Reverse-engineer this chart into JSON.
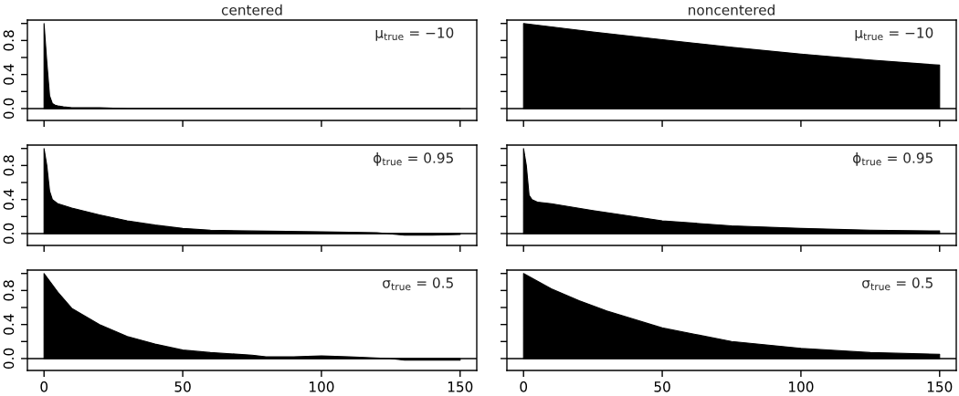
{
  "chart_data": [
    {
      "type": "area",
      "title": "centered",
      "annotations": [
        "μ$_{true}$ = −10"
      ],
      "x": [
        0,
        1,
        2,
        3,
        4,
        5,
        7,
        10,
        15,
        20,
        30,
        40,
        50,
        60,
        75,
        90,
        100,
        110,
        120,
        130,
        140,
        150
      ],
      "series": [
        {
          "color": "#000000",
          "values": [
            1,
            0.55,
            0.15,
            0.06,
            0.04,
            0.03,
            0.02,
            0.01,
            0.01,
            0.01,
            0.0,
            0.0,
            0.0,
            0.0,
            0.0,
            0.0,
            0.0,
            0.0,
            0.0,
            0.0,
            0.0,
            0.0
          ]
        }
      ],
      "xlim": [
        -6,
        156
      ],
      "ylim": [
        -0.14,
        1.04
      ],
      "xticks": [
        {
          "value": 0,
          "label": null
        },
        {
          "value": 50,
          "label": null
        },
        {
          "value": 100,
          "label": null
        },
        {
          "value": 150,
          "label": null
        }
      ],
      "yticks": [
        {
          "value": 0,
          "label": "0.0"
        },
        {
          "value": 0.2,
          "label": null
        },
        {
          "value": 0.4,
          "label": "0.4"
        },
        {
          "value": 0.6,
          "label": null
        },
        {
          "value": 0.8,
          "label": "0.8"
        },
        {
          "value": 1,
          "label": null
        }
      ],
      "ref_lines": [
        {
          "axis": "y",
          "value": 0,
          "color": "#000000"
        }
      ],
      "tick_labels": "y",
      "grid": false,
      "legend": false
    },
    {
      "type": "area",
      "title": "noncentered",
      "annotations": [
        "μ$_{true}$ = −10"
      ],
      "x": [
        0,
        25,
        50,
        75,
        100,
        125,
        150
      ],
      "series": [
        {
          "color": "#000000",
          "values": [
            1,
            0.9,
            0.81,
            0.72,
            0.64,
            0.57,
            0.51
          ]
        }
      ],
      "xlim": [
        -6,
        156
      ],
      "ylim": [
        -0.14,
        1.04
      ],
      "xticks": [
        {
          "value": 0,
          "label": null
        },
        {
          "value": 50,
          "label": null
        },
        {
          "value": 100,
          "label": null
        },
        {
          "value": 150,
          "label": null
        }
      ],
      "yticks": [
        {
          "value": 0,
          "label": null
        },
        {
          "value": 0.2,
          "label": null
        },
        {
          "value": 0.4,
          "label": null
        },
        {
          "value": 0.6,
          "label": null
        },
        {
          "value": 0.8,
          "label": null
        },
        {
          "value": 1,
          "label": null
        }
      ],
      "ref_lines": [
        {
          "axis": "y",
          "value": 0,
          "color": "#000000"
        }
      ],
      "tick_labels": false,
      "grid": false,
      "legend": false
    },
    {
      "type": "area",
      "annotations": [
        "ϕ$_{true}$ = 0.95"
      ],
      "x": [
        0,
        1,
        2,
        3,
        5,
        10,
        20,
        30,
        40,
        50,
        60,
        75,
        100,
        120,
        130,
        140,
        150
      ],
      "series": [
        {
          "color": "#000000",
          "values": [
            1,
            0.8,
            0.5,
            0.4,
            0.35,
            0.3,
            0.22,
            0.15,
            0.1,
            0.06,
            0.04,
            0.03,
            0.02,
            0.01,
            -0.02,
            -0.02,
            -0.01
          ]
        }
      ],
      "xlim": [
        -6,
        156
      ],
      "ylim": [
        -0.14,
        1.04
      ],
      "xticks": [
        {
          "value": 0,
          "label": null
        },
        {
          "value": 50,
          "label": null
        },
        {
          "value": 100,
          "label": null
        },
        {
          "value": 150,
          "label": null
        }
      ],
      "yticks": [
        {
          "value": 0,
          "label": "0.0"
        },
        {
          "value": 0.2,
          "label": null
        },
        {
          "value": 0.4,
          "label": "0.4"
        },
        {
          "value": 0.6,
          "label": null
        },
        {
          "value": 0.8,
          "label": "0.8"
        },
        {
          "value": 1,
          "label": null
        }
      ],
      "ref_lines": [
        {
          "axis": "y",
          "value": 0,
          "color": "#000000"
        }
      ],
      "tick_labels": "y",
      "grid": false,
      "legend": false
    },
    {
      "type": "area",
      "annotations": [
        "ϕ$_{true}$ = 0.95"
      ],
      "x": [
        0,
        1,
        2,
        3,
        5,
        10,
        25,
        50,
        75,
        100,
        125,
        150
      ],
      "series": [
        {
          "color": "#000000",
          "values": [
            1,
            0.8,
            0.45,
            0.4,
            0.37,
            0.35,
            0.27,
            0.15,
            0.09,
            0.06,
            0.04,
            0.03
          ]
        }
      ],
      "xlim": [
        -6,
        156
      ],
      "ylim": [
        -0.14,
        1.04
      ],
      "xticks": [
        {
          "value": 0,
          "label": null
        },
        {
          "value": 50,
          "label": null
        },
        {
          "value": 100,
          "label": null
        },
        {
          "value": 150,
          "label": null
        }
      ],
      "yticks": [
        {
          "value": 0,
          "label": null
        },
        {
          "value": 0.2,
          "label": null
        },
        {
          "value": 0.4,
          "label": null
        },
        {
          "value": 0.6,
          "label": null
        },
        {
          "value": 0.8,
          "label": null
        },
        {
          "value": 1,
          "label": null
        }
      ],
      "ref_lines": [
        {
          "axis": "y",
          "value": 0,
          "color": "#000000"
        }
      ],
      "tick_labels": false,
      "grid": false,
      "legend": false
    },
    {
      "type": "area",
      "annotations": [
        "σ$_{true}$ = 0.5"
      ],
      "x": [
        0,
        5,
        10,
        20,
        30,
        40,
        50,
        60,
        75,
        80,
        90,
        100,
        110,
        125,
        130,
        140,
        150
      ],
      "series": [
        {
          "color": "#000000",
          "values": [
            1,
            0.78,
            0.59,
            0.4,
            0.26,
            0.17,
            0.1,
            0.07,
            0.04,
            0.02,
            0.02,
            0.03,
            0.02,
            0.0,
            -0.02,
            -0.02,
            -0.02
          ]
        }
      ],
      "xlim": [
        -6,
        156
      ],
      "ylim": [
        -0.14,
        1.04
      ],
      "xticks": [
        0,
        50,
        100,
        150
      ],
      "yticks": [
        {
          "value": 0,
          "label": "0.0"
        },
        {
          "value": 0.2,
          "label": null
        },
        {
          "value": 0.4,
          "label": "0.4"
        },
        {
          "value": 0.6,
          "label": null
        },
        {
          "value": 0.8,
          "label": "0.8"
        },
        {
          "value": 1,
          "label": null
        }
      ],
      "ref_lines": [
        {
          "axis": "y",
          "value": 0,
          "color": "#000000"
        }
      ],
      "grid": false,
      "legend": false
    },
    {
      "type": "area",
      "annotations": [
        "σ$_{true}$ = 0.5"
      ],
      "x": [
        0,
        10,
        20,
        30,
        50,
        75,
        100,
        125,
        150
      ],
      "series": [
        {
          "color": "#000000",
          "values": [
            1,
            0.82,
            0.68,
            0.56,
            0.36,
            0.2,
            0.12,
            0.07,
            0.05
          ]
        }
      ],
      "xlim": [
        -6,
        156
      ],
      "ylim": [
        -0.14,
        1.04
      ],
      "xticks": [
        0,
        50,
        100,
        150
      ],
      "yticks": [
        {
          "value": 0,
          "label": null
        },
        {
          "value": 0.2,
          "label": null
        },
        {
          "value": 0.4,
          "label": null
        },
        {
          "value": 0.6,
          "label": null
        },
        {
          "value": 0.8,
          "label": null
        },
        {
          "value": 1,
          "label": null
        }
      ],
      "ref_lines": [
        {
          "axis": "y",
          "value": 0,
          "color": "#000000"
        }
      ],
      "tick_labels": "x",
      "grid": false,
      "legend": false
    }
  ]
}
